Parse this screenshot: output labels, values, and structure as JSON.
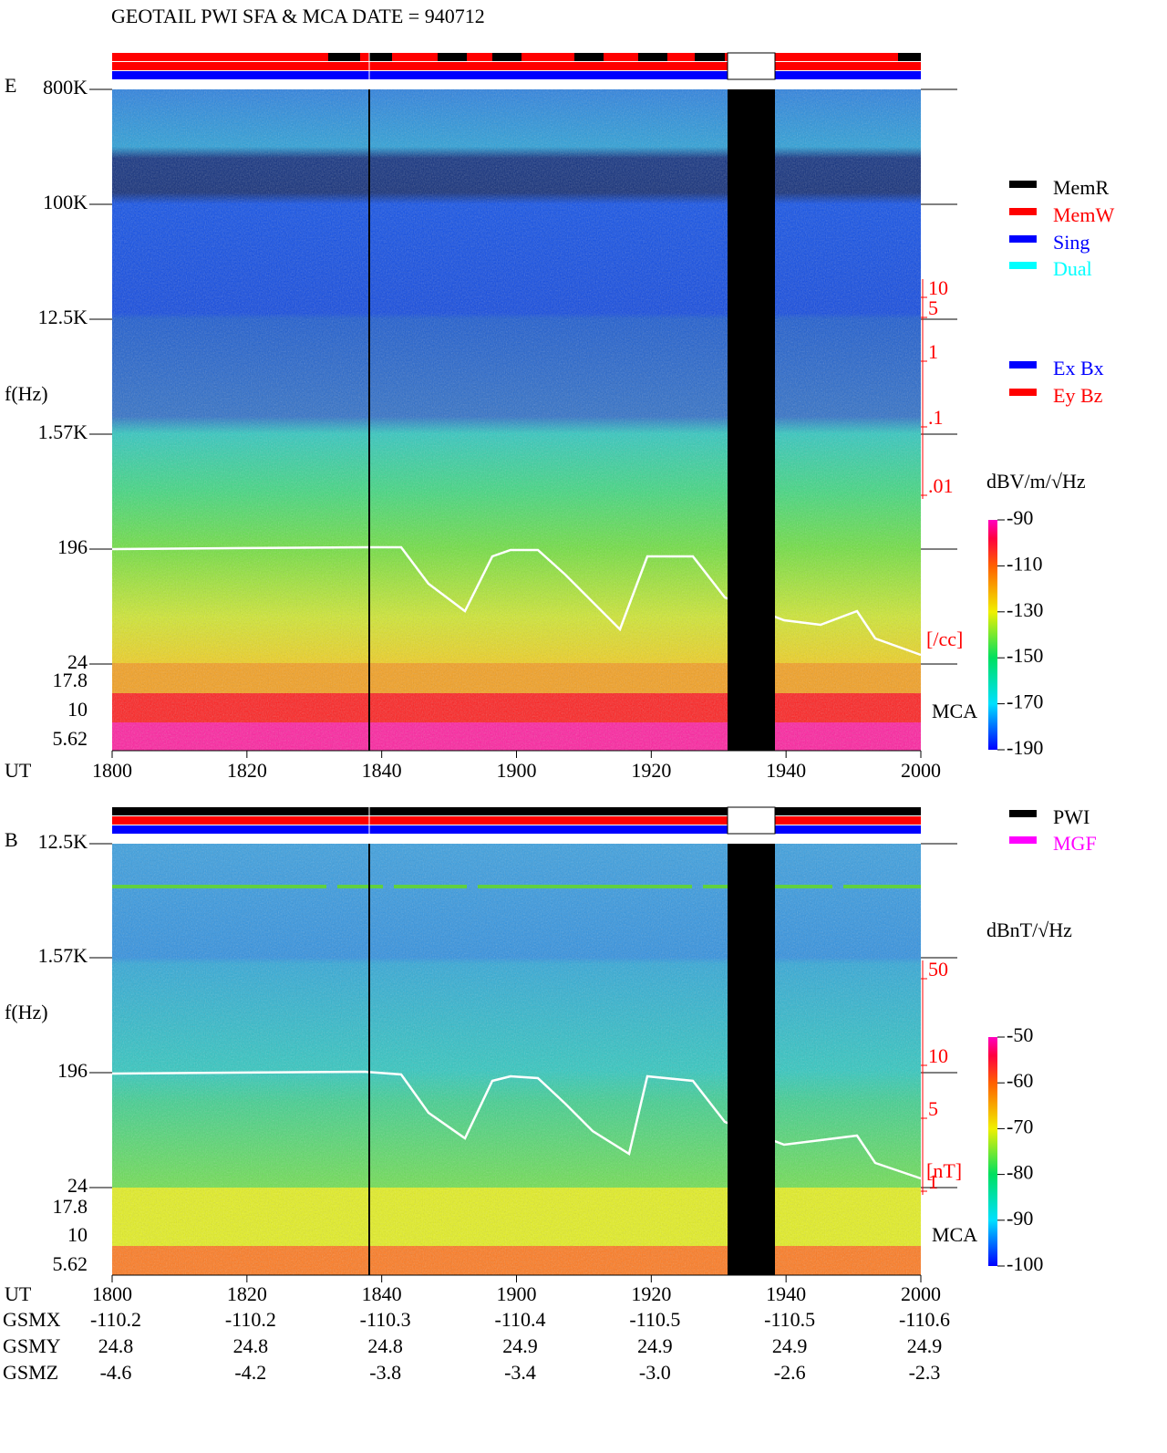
{
  "chart_data": [
    {
      "type": "spectrogram",
      "title": "GEOTAIL  PWI SFA & MCA   DATE = 940712",
      "component": "E",
      "y_label": "f(Hz)",
      "y_ticks": [
        "800K",
        "100K",
        "12.5K",
        "1.57K",
        "196",
        "24"
      ],
      "mca_ticks": [
        "17.8",
        "10",
        "5.62"
      ],
      "mca_label": "MCA",
      "x_label": "UT",
      "x_ticks": [
        "1800",
        "1820",
        "1840",
        "1900",
        "1920",
        "1940",
        "2000"
      ],
      "density_ticks": [
        "10",
        "5",
        "1",
        ".1",
        ".01"
      ],
      "density_unit": "[/cc]",
      "colorbar_title": "dBV/m/√Hz",
      "colorbar_lim": [
        -190,
        -90
      ],
      "colorbar_ticks": [
        -90,
        -110,
        -130,
        -150,
        -170,
        -190
      ],
      "legend_mode": [
        {
          "name": "MemR",
          "color": "#000000"
        },
        {
          "name": "MemW",
          "color": "#ff0000"
        },
        {
          "name": "Sing",
          "color": "#0000ff"
        },
        {
          "name": "Dual",
          "color": "#00ffff"
        }
      ],
      "legend_antenna": [
        {
          "name": "Ex Bx",
          "color": "#0000ff"
        },
        {
          "name": "Ey Bz",
          "color": "#ff0000"
        }
      ]
    },
    {
      "type": "spectrogram",
      "component": "B",
      "y_label": "f(Hz)",
      "y_ticks": [
        "12.5K",
        "1.57K",
        "196",
        "24"
      ],
      "mca_ticks": [
        "17.8",
        "10",
        "5.62"
      ],
      "mca_label": "MCA",
      "x_label": "UT",
      "x_ticks": [
        "1800",
        "1820",
        "1840",
        "1900",
        "1920",
        "1940",
        "2000"
      ],
      "density_ticks": [
        "50",
        "10",
        "5",
        "1"
      ],
      "density_unit": "[nT]",
      "colorbar_title": "dBnT/√Hz",
      "colorbar_lim": [
        -100,
        -50
      ],
      "colorbar_ticks": [
        -50,
        -60,
        -70,
        -80,
        -90,
        -100
      ],
      "legend_source": [
        {
          "name": "PWI",
          "color": "#000000"
        },
        {
          "name": "MGF",
          "color": "#ff00ff"
        }
      ],
      "orbit": [
        {
          "label": "GSMX",
          "values": [
            "-110.2",
            "-110.2",
            "-110.3",
            "-110.4",
            "-110.5",
            "-110.5",
            "-110.6"
          ]
        },
        {
          "label": "GSMY",
          "values": [
            "24.8",
            "24.8",
            "24.8",
            "24.9",
            "24.9",
            "24.9",
            "24.9"
          ]
        },
        {
          "label": "GSMZ",
          "values": [
            "-4.6",
            "-4.2",
            "-3.8",
            "-3.4",
            "-3.0",
            "-2.6",
            "-2.3"
          ]
        }
      ]
    }
  ]
}
